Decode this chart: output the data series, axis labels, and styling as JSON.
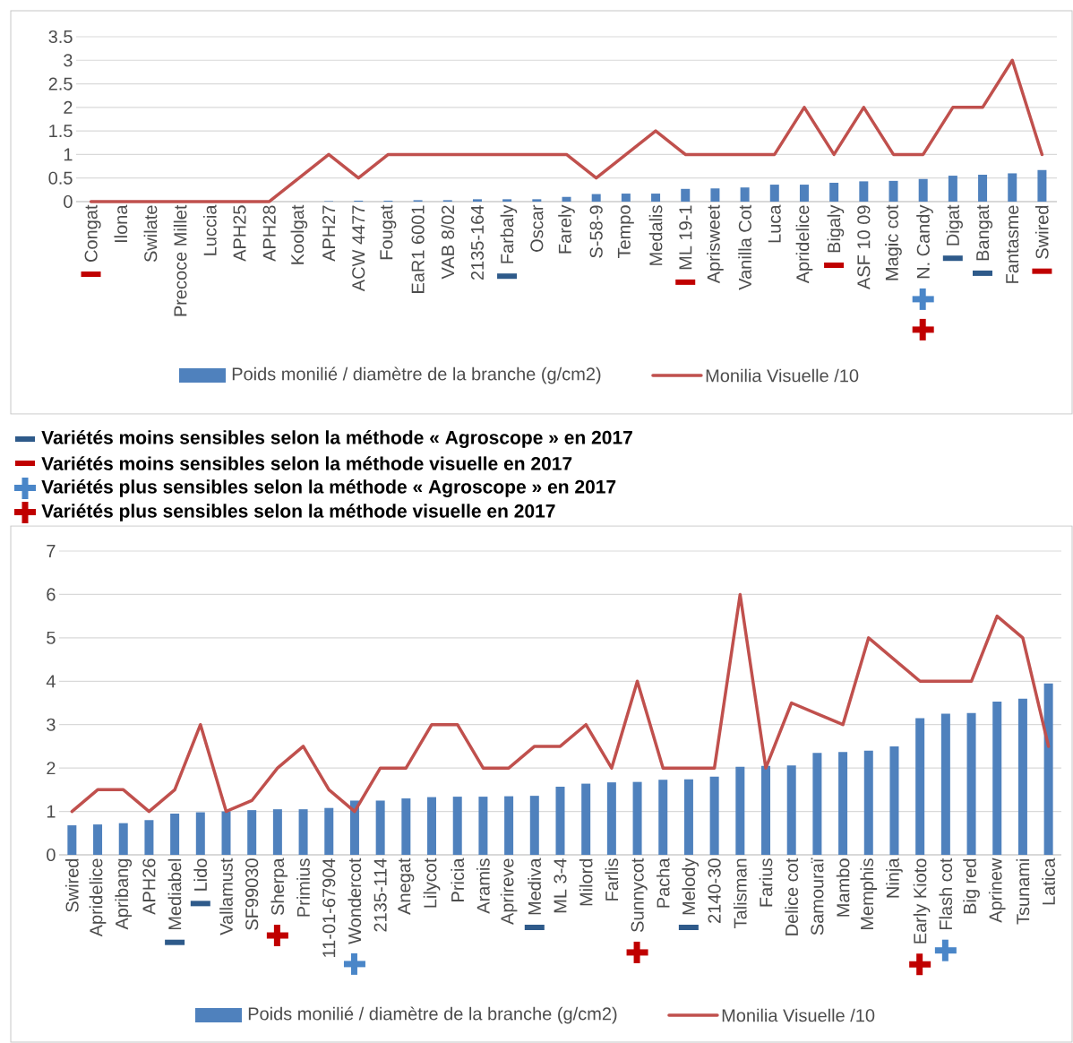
{
  "chart_data": [
    {
      "type": "bar",
      "categories": [
        "Congat",
        "Ilona",
        "Swilate",
        "Precoce Millet",
        "Luccia",
        "APH25",
        "APH28",
        "Koolgat",
        "APH27",
        "ACW 4477",
        "Fougat",
        "EaR1 6001",
        "VAB 8/02",
        "2135-164",
        "Farbaly",
        "Oscar",
        "Farely",
        "S-58-9",
        "Tempo",
        "Medalis",
        "ML 19-1",
        "Aprisweet",
        "Vanilla Cot",
        "Luca",
        "Apridelice",
        "Bigaly",
        "ASF 10 09",
        "Magic cot",
        "N. Candy",
        "Digat",
        "Bangat",
        "Fantasme",
        "Swired"
      ],
      "series": [
        {
          "name": "Poids monilié / diamètre de la branche (g/cm2)",
          "type": "bar",
          "color": "#4f81bd",
          "values": [
            0,
            0,
            0,
            0,
            0,
            0,
            0,
            0,
            0.01,
            0.02,
            0.02,
            0.03,
            0.03,
            0.05,
            0.05,
            0.05,
            0.1,
            0.16,
            0.17,
            0.17,
            0.27,
            0.28,
            0.3,
            0.36,
            0.36,
            0.4,
            0.43,
            0.44,
            0.48,
            0.55,
            0.57,
            0.6,
            0.67
          ]
        },
        {
          "name": "Monilia Visuelle /10",
          "type": "line",
          "color": "#c0504d",
          "values": [
            0,
            0,
            0,
            0,
            0,
            0,
            0,
            0.5,
            1,
            0.5,
            1,
            1,
            1,
            1,
            1,
            1,
            1,
            0.5,
            1,
            1.5,
            1,
            1,
            1,
            1,
            2,
            1,
            2,
            1,
            1,
            2,
            2,
            3,
            1
          ]
        }
      ],
      "ylim": [
        0,
        3.5
      ],
      "yticks": [
        0,
        0.5,
        1,
        1.5,
        2,
        2.5,
        3,
        3.5
      ],
      "grid": "y",
      "legend": "bottom"
    },
    {
      "type": "other",
      "annotations": [
        "Variétés moins sensibles selon la méthode « Agroscope » en 2017",
        "Variétés moins sensibles selon la méthode visuelle en 2017",
        "Variétés plus sensibles selon la méthode « Agroscope » en 2017",
        "Variétés plus sensibles selon la méthode visuelle en 2017"
      ]
    },
    {
      "type": "bar",
      "categories": [
        "Swired",
        "Apridelice",
        "Apribang",
        "APH26",
        "Mediabel",
        "Lido",
        "Vallamust",
        "SF99030",
        "Sherpa",
        "Primius",
        "11-01-67904",
        "Wondercot",
        "2135-114",
        "Anegat",
        "Lilycot",
        "Pricia",
        "Aramis",
        "Aprireve",
        "Mediva",
        "ML 3-4",
        "Milord",
        "Farlis",
        "Sunnycot",
        "Pacha",
        "Melody",
        "2140-30",
        "Talisman",
        "Farius",
        "Delice cot",
        "Samouraï",
        "Mambo",
        "Memphis",
        "Ninja",
        "Early Kioto",
        "Flash cot",
        "Big red",
        "Aprinew",
        "Tsunami",
        "Latica"
      ],
      "series": [
        {
          "name": "Poids monilié / diamètre de la branche (g/cm2)",
          "type": "bar",
          "color": "#4f81bd",
          "values": [
            0.68,
            0.7,
            0.73,
            0.8,
            0.95,
            0.98,
            1.0,
            1.03,
            1.05,
            1.05,
            1.08,
            1.25,
            1.25,
            1.3,
            1.33,
            1.34,
            1.34,
            1.35,
            1.36,
            1.57,
            1.64,
            1.67,
            1.68,
            1.73,
            1.74,
            1.8,
            2.03,
            2.05,
            2.06,
            2.35,
            2.37,
            2.4,
            2.5,
            3.15,
            3.25,
            3.27,
            3.53,
            3.6,
            3.95
          ]
        },
        {
          "name": "Monilia Visuelle /10",
          "type": "line",
          "color": "#c0504d",
          "values": [
            1,
            1.5,
            1.5,
            1,
            1.5,
            3,
            1,
            1.25,
            2,
            2.5,
            1.5,
            1,
            2,
            2,
            3,
            3,
            2,
            2,
            2.5,
            2.5,
            3,
            2,
            4,
            2,
            2,
            2,
            6,
            2,
            3.5,
            3.25,
            3,
            5,
            4.5,
            4,
            4,
            4,
            5.5,
            5,
            2.5
          ]
        }
      ],
      "ylim": [
        0,
        7
      ],
      "yticks": [
        0,
        1,
        2,
        3,
        4,
        5,
        6,
        7
      ],
      "grid": "y",
      "legend": "bottom"
    }
  ]
}
